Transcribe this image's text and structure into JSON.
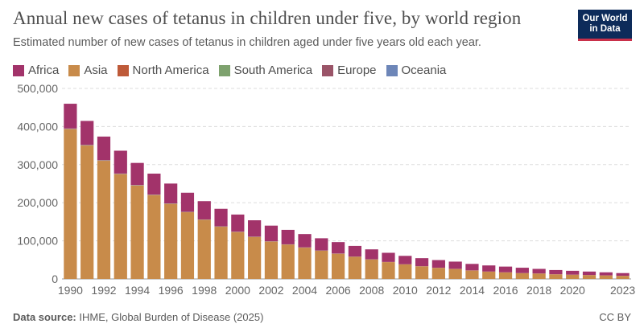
{
  "header": {
    "title": "Annual new cases of tetanus in children under five, by world region",
    "subtitle": "Estimated number of new cases of tetanus in children aged under five years old each year."
  },
  "logo": {
    "line1": "Our World",
    "line2": "in Data"
  },
  "footer": {
    "source_label": "Data source:",
    "source_text": "IHME, Global Burden of Disease (2025)",
    "license": "CC BY"
  },
  "colors": {
    "Africa": "#a2336a",
    "Asia": "#c88b4a",
    "North America": "#be5a39",
    "South America": "#7ea26e",
    "Europe": "#9a5468",
    "Oceania": "#6d86b8",
    "grid": "#dddddd",
    "axis_text": "#666666"
  },
  "chart_data": {
    "type": "bar",
    "stacked": true,
    "x": [
      1990,
      1991,
      1992,
      1993,
      1994,
      1995,
      1996,
      1997,
      1998,
      1999,
      2000,
      2001,
      2002,
      2003,
      2004,
      2005,
      2006,
      2007,
      2008,
      2009,
      2010,
      2011,
      2012,
      2013,
      2014,
      2015,
      2016,
      2017,
      2018,
      2019,
      2020,
      2021,
      2022,
      2023
    ],
    "x_tick_labels": [
      "1990",
      "1992",
      "1994",
      "1996",
      "1998",
      "2000",
      "2002",
      "2004",
      "2006",
      "2008",
      "2010",
      "2012",
      "2014",
      "2016",
      "2018",
      "2020",
      "2023"
    ],
    "y_ticks": [
      0,
      100000,
      200000,
      300000,
      400000,
      500000
    ],
    "y_tick_labels": [
      "0",
      "100,000",
      "200,000",
      "300,000",
      "400,000",
      "500,000"
    ],
    "ylim": [
      0,
      500000
    ],
    "grid": true,
    "legend_position": "top-left",
    "series": [
      {
        "name": "Africa",
        "values": [
          65000,
          63000,
          62000,
          60000,
          58000,
          55000,
          52000,
          50000,
          48000,
          46000,
          45000,
          43000,
          41000,
          38000,
          35000,
          32000,
          30000,
          28000,
          26000,
          24000,
          22000,
          21000,
          20000,
          19000,
          17000,
          16000,
          15000,
          14000,
          12000,
          11000,
          10000,
          9000,
          8000,
          7000
        ]
      },
      {
        "name": "Asia",
        "values": [
          393000,
          350000,
          310000,
          275000,
          245000,
          220000,
          197000,
          175000,
          155000,
          137000,
          123000,
          110000,
          98000,
          90000,
          82000,
          74000,
          66000,
          58000,
          51000,
          44000,
          38000,
          33000,
          29000,
          26000,
          22000,
          19000,
          17000,
          15000,
          14000,
          12000,
          11000,
          10000,
          9000,
          8000
        ]
      },
      {
        "name": "North America",
        "values": [
          300,
          300,
          300,
          300,
          300,
          300,
          300,
          300,
          300,
          300,
          300,
          300,
          300,
          300,
          300,
          300,
          300,
          300,
          300,
          300,
          300,
          300,
          300,
          300,
          300,
          300,
          300,
          300,
          300,
          300,
          300,
          300,
          300,
          300
        ]
      },
      {
        "name": "South America",
        "values": [
          800,
          750,
          700,
          650,
          600,
          550,
          500,
          450,
          400,
          350,
          300,
          280,
          260,
          240,
          220,
          200,
          180,
          160,
          140,
          120,
          100,
          90,
          80,
          70,
          60,
          50,
          45,
          40,
          35,
          30,
          25,
          20,
          18,
          15
        ]
      },
      {
        "name": "Europe",
        "values": [
          400,
          380,
          360,
          340,
          320,
          300,
          280,
          260,
          240,
          220,
          200,
          180,
          160,
          140,
          120,
          100,
          90,
          80,
          70,
          60,
          50,
          45,
          40,
          35,
          30,
          25,
          20,
          18,
          15,
          12,
          10,
          8,
          6,
          5
        ]
      },
      {
        "name": "Oceania",
        "values": [
          300,
          290,
          280,
          270,
          260,
          250,
          240,
          230,
          220,
          210,
          200,
          190,
          180,
          170,
          160,
          150,
          140,
          130,
          120,
          110,
          100,
          90,
          80,
          70,
          60,
          50,
          45,
          40,
          35,
          30,
          25,
          20,
          18,
          15
        ]
      }
    ]
  }
}
